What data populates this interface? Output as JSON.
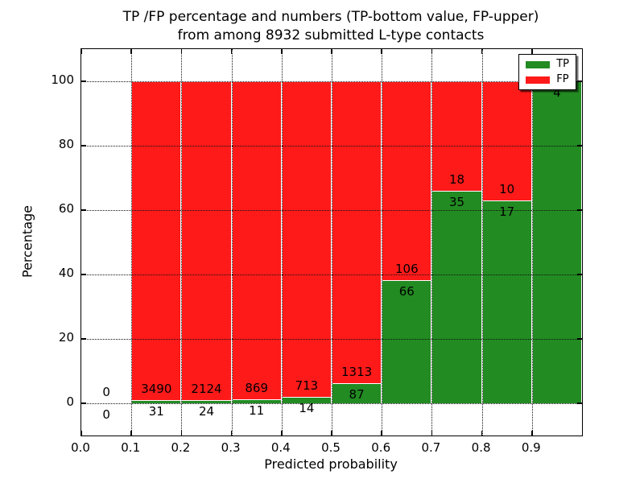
{
  "figure": {
    "title_line1": "TP /FP percentage and numbers (TP-bottom value, FP-upper)",
    "title_line2": "from among 8932 submitted L-type contacts"
  },
  "chart_data": {
    "type": "bar",
    "stacked": true,
    "title": "TP /FP percentage and numbers (TP-bottom value, FP-upper) from among 8932 submitted L-type contacts",
    "xlabel": "Predicted probability",
    "ylabel": "Percentage",
    "xlim": [
      0.0,
      1.0
    ],
    "ylim": [
      -10,
      110
    ],
    "x_tick_labels": [
      "0.0",
      "0.1",
      "0.2",
      "0.3",
      "0.4",
      "0.5",
      "0.6",
      "0.7",
      "0.8",
      "0.9"
    ],
    "y_tick_labels": [
      "0",
      "20",
      "40",
      "60",
      "80",
      "100"
    ],
    "grid": "dotted black, both axes, drawn over bars",
    "total_contacts": 8932,
    "legend": {
      "position": "upper-right",
      "entries": [
        {
          "label": "TP",
          "color": "#228b22"
        },
        {
          "label": "FP",
          "color": "#ff1a1a"
        }
      ]
    },
    "series_note": "Stacked 100% bars per probability bin: green TP fraction at bottom, red FP fraction on top. Numeric labels are raw counts: TP count below the color boundary, FP count above it.",
    "bins": [
      {
        "x_range": [
          0.0,
          0.1
        ],
        "tp": 0,
        "fp": 0,
        "tp_pct": 0,
        "bar": false
      },
      {
        "x_range": [
          0.1,
          0.2
        ],
        "tp": 31,
        "fp": 3490,
        "tp_pct": 0.88,
        "bar": true
      },
      {
        "x_range": [
          0.2,
          0.3
        ],
        "tp": 24,
        "fp": 2124,
        "tp_pct": 1.12,
        "bar": true
      },
      {
        "x_range": [
          0.3,
          0.4
        ],
        "tp": 11,
        "fp": 869,
        "tp_pct": 1.25,
        "bar": true
      },
      {
        "x_range": [
          0.4,
          0.5
        ],
        "tp": 14,
        "fp": 713,
        "tp_pct": 1.93,
        "bar": true
      },
      {
        "x_range": [
          0.5,
          0.6
        ],
        "tp": 87,
        "fp": 1313,
        "tp_pct": 6.21,
        "bar": true
      },
      {
        "x_range": [
          0.6,
          0.7
        ],
        "tp": 66,
        "fp": 106,
        "tp_pct": 38.37,
        "bar": true
      },
      {
        "x_range": [
          0.7,
          0.8
        ],
        "tp": 35,
        "fp": 18,
        "tp_pct": 66.04,
        "bar": true
      },
      {
        "x_range": [
          0.8,
          0.9
        ],
        "tp": 17,
        "fp": 10,
        "tp_pct": 62.96,
        "bar": true
      },
      {
        "x_range": [
          0.9,
          1.0
        ],
        "tp": 4,
        "fp": 0,
        "tp_pct": 100.0,
        "bar": true
      }
    ],
    "colors": {
      "tp": "#228b22",
      "fp": "#ff1a1a",
      "background": "#ffffff",
      "axis": "#000000"
    }
  }
}
